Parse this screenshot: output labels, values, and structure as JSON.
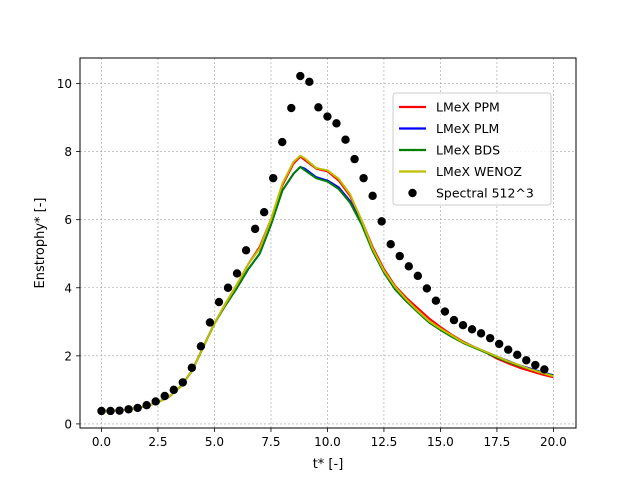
{
  "chart_data": {
    "type": "line",
    "title": "",
    "xlabel": "t* [-]",
    "ylabel": "Enstrophy* [-]",
    "xlim": [
      -0.95,
      21.0
    ],
    "ylim": [
      -0.12,
      10.75
    ],
    "xticks": [
      0.0,
      2.5,
      5.0,
      7.5,
      10.0,
      12.5,
      15.0,
      17.5,
      20.0
    ],
    "xtick_labels": [
      "0.0",
      "2.5",
      "5.0",
      "7.5",
      "10.0",
      "12.5",
      "15.0",
      "17.5",
      "20.0"
    ],
    "yticks": [
      0,
      2,
      4,
      6,
      8,
      10
    ],
    "ytick_labels": [
      "0",
      "2",
      "4",
      "6",
      "8",
      "10"
    ],
    "grid": true,
    "legend_position": "upper-right",
    "series": [
      {
        "name": "LMeX PPM",
        "color": "#ff0000",
        "style": "line",
        "x": [
          0,
          1,
          2,
          2.5,
          3,
          3.5,
          4,
          4.5,
          5,
          5.5,
          6,
          6.5,
          7,
          7.5,
          8,
          8.5,
          8.8,
          9,
          9.5,
          10,
          10.5,
          11,
          11.5,
          12,
          12.5,
          13,
          13.5,
          14,
          14.5,
          15,
          15.5,
          16,
          17,
          17.5,
          18,
          18.5,
          19,
          19.5,
          20
        ],
        "y": [
          0.37,
          0.41,
          0.52,
          0.64,
          0.8,
          1.1,
          1.55,
          2.25,
          2.95,
          3.55,
          4.1,
          4.7,
          5.2,
          6.0,
          7.0,
          7.65,
          7.85,
          7.75,
          7.5,
          7.42,
          7.15,
          6.7,
          6.0,
          5.2,
          4.55,
          4.05,
          3.7,
          3.4,
          3.1,
          2.85,
          2.62,
          2.42,
          2.1,
          1.92,
          1.78,
          1.65,
          1.55,
          1.45,
          1.37
        ]
      },
      {
        "name": "LMeX PLM",
        "color": "#0000ff",
        "style": "line",
        "x": [
          0,
          1,
          2,
          2.5,
          3,
          3.5,
          4,
          4.5,
          5,
          5.5,
          6,
          6.5,
          7,
          7.5,
          8,
          8.5,
          8.8,
          9,
          9.5,
          10,
          10.5,
          11,
          11.5,
          12,
          12.5,
          13,
          13.5,
          14,
          14.5,
          15,
          15.5,
          16,
          17,
          17.5,
          18,
          18.5,
          19,
          19.5,
          20
        ],
        "y": [
          0.37,
          0.41,
          0.52,
          0.64,
          0.8,
          1.1,
          1.55,
          2.25,
          2.95,
          3.5,
          4.0,
          4.55,
          5.0,
          5.85,
          6.85,
          7.35,
          7.55,
          7.5,
          7.25,
          7.15,
          6.95,
          6.55,
          5.9,
          5.1,
          4.45,
          3.95,
          3.6,
          3.3,
          3.0,
          2.78,
          2.58,
          2.4,
          2.12,
          1.98,
          1.85,
          1.72,
          1.62,
          1.52,
          1.43
        ]
      },
      {
        "name": "LMeX BDS",
        "color": "#008000",
        "style": "line",
        "x": [
          0,
          1,
          2,
          2.5,
          3,
          3.5,
          4,
          4.5,
          5,
          5.5,
          6,
          6.5,
          7,
          7.5,
          8,
          8.5,
          8.8,
          9,
          9.5,
          10,
          10.5,
          11,
          11.5,
          12,
          12.5,
          13,
          13.5,
          14,
          14.5,
          15,
          15.5,
          16,
          17,
          17.5,
          18,
          18.5,
          19,
          19.5,
          20
        ],
        "y": [
          0.37,
          0.41,
          0.52,
          0.64,
          0.8,
          1.1,
          1.55,
          2.25,
          2.95,
          3.5,
          4.0,
          4.55,
          5.0,
          5.85,
          6.85,
          7.35,
          7.55,
          7.45,
          7.22,
          7.12,
          6.9,
          6.5,
          5.88,
          5.08,
          4.45,
          3.95,
          3.6,
          3.28,
          2.98,
          2.76,
          2.56,
          2.38,
          2.1,
          1.95,
          1.82,
          1.7,
          1.6,
          1.5,
          1.42
        ]
      },
      {
        "name": "LMeX WENOZ",
        "color": "#bfbf00",
        "style": "line",
        "x": [
          0,
          1,
          2,
          2.5,
          3,
          3.5,
          4,
          4.5,
          5,
          5.5,
          6,
          6.5,
          7,
          7.5,
          8,
          8.5,
          8.8,
          9,
          9.5,
          10,
          10.5,
          11,
          11.5,
          12,
          12.5,
          13,
          13.5,
          14,
          14.5,
          15,
          15.5,
          16,
          17,
          17.5,
          18,
          18.5,
          19,
          19.5,
          20
        ],
        "y": [
          0.37,
          0.41,
          0.52,
          0.64,
          0.8,
          1.1,
          1.55,
          2.25,
          2.95,
          3.55,
          4.1,
          4.7,
          5.15,
          6.0,
          7.05,
          7.7,
          7.88,
          7.8,
          7.52,
          7.45,
          7.2,
          6.75,
          6.0,
          5.15,
          4.5,
          4.02,
          3.65,
          3.32,
          3.02,
          2.8,
          2.6,
          2.4,
          2.12,
          1.98,
          1.84,
          1.72,
          1.6,
          1.5,
          1.4
        ]
      },
      {
        "name": "Spectral 512^3",
        "color": "#000000",
        "style": "scatter",
        "x": [
          0.0,
          0.4,
          0.8,
          1.2,
          1.6,
          2.0,
          2.4,
          2.8,
          3.2,
          3.6,
          4.0,
          4.4,
          4.8,
          5.2,
          5.6,
          6.0,
          6.4,
          6.8,
          7.2,
          7.6,
          8.0,
          8.4,
          8.8,
          9.2,
          9.6,
          10.0,
          10.4,
          10.8,
          11.2,
          11.6,
          12.0,
          12.4,
          12.8,
          13.2,
          13.6,
          14.0,
          14.4,
          14.8,
          15.2,
          15.6,
          16.0,
          16.4,
          16.8,
          17.2,
          17.6,
          18.0,
          18.4,
          18.8,
          19.2,
          19.6
        ],
        "y": [
          0.38,
          0.38,
          0.39,
          0.43,
          0.47,
          0.55,
          0.66,
          0.82,
          1.0,
          1.22,
          1.65,
          2.28,
          2.98,
          3.58,
          4.0,
          4.42,
          5.1,
          5.73,
          6.22,
          7.22,
          8.28,
          9.28,
          10.22,
          10.05,
          9.3,
          9.03,
          8.83,
          8.35,
          7.78,
          7.22,
          6.7,
          5.95,
          5.28,
          4.93,
          4.63,
          4.35,
          3.98,
          3.62,
          3.3,
          3.05,
          2.9,
          2.78,
          2.66,
          2.52,
          2.35,
          2.18,
          2.03,
          1.87,
          1.73,
          1.6
        ]
      }
    ]
  }
}
